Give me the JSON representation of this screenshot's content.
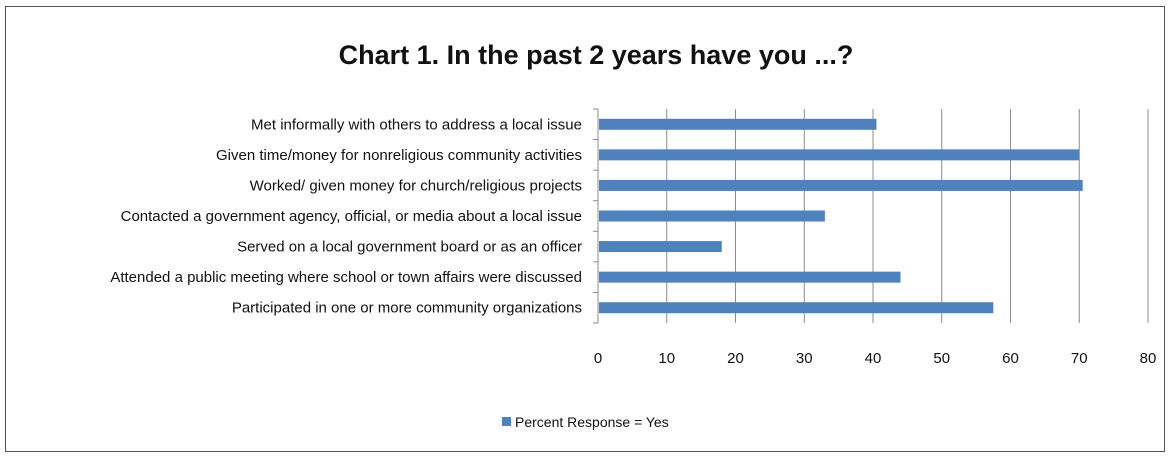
{
  "chart_data": {
    "type": "bar",
    "orientation": "horizontal",
    "title": "Chart 1. In the past 2 years have you ...?",
    "categories": [
      "Met informally with others to address a local issue",
      "Given time/money for nonreligious community activities",
      "Worked/ given money for church/religious projects",
      "Contacted  a government agency, official, or media about a local issue",
      "Served on a local government board or as an officer",
      "Attended a public meeting where school or town affairs were discussed",
      "Participated in one or more community organizations"
    ],
    "series": [
      {
        "name": "Percent Response = Yes",
        "values": [
          40.5,
          70,
          70.5,
          33,
          18,
          44,
          57.5
        ]
      }
    ],
    "xlim": [
      0,
      80
    ],
    "xticks": [
      "0",
      "10",
      "20",
      "30",
      "40",
      "50",
      "60",
      "70",
      "80"
    ],
    "grid": "vertical",
    "legend_position": "bottom",
    "colors": {
      "bar": "#4f81bd",
      "grid": "#8c8c8c",
      "axis": "#8c8c8c"
    }
  }
}
